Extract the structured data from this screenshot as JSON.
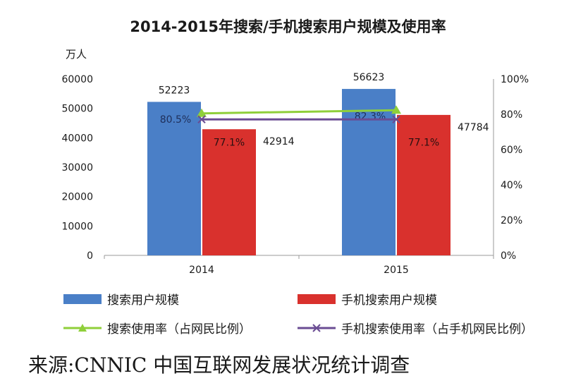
{
  "chart_data": {
    "type": "bar",
    "title": "2014-2015年搜索/手机搜索用户规模及使用率",
    "y_unit_label": "万人",
    "categories": [
      "2014",
      "2015"
    ],
    "ylim": [
      0,
      60000
    ],
    "yticks": [
      "0",
      "10000",
      "20000",
      "30000",
      "40000",
      "50000",
      "60000"
    ],
    "y2lim": [
      0,
      100
    ],
    "y2ticks": [
      "0%",
      "20%",
      "40%",
      "60%",
      "80%",
      "100%"
    ],
    "grid": false,
    "legend_position": "bottom",
    "series": [
      {
        "name": "搜索用户规模",
        "kind": "bar",
        "axis": "left",
        "color": "#4a7fc7",
        "values": [
          52223,
          56623
        ],
        "labels": [
          "52223",
          "56623"
        ]
      },
      {
        "name": "手机搜索用户规模",
        "kind": "bar",
        "axis": "left",
        "color": "#d9312d",
        "values": [
          42914,
          47784
        ],
        "labels": [
          "42914",
          "47784"
        ]
      },
      {
        "name": "搜索使用率（占网民比例）",
        "kind": "line",
        "axis": "right",
        "color": "#8fcf3a",
        "marker": "triangle",
        "values": [
          80.5,
          82.3
        ],
        "labels": [
          "80.5%",
          "82.3%"
        ]
      },
      {
        "name": "手机搜索使用率（占手机网民比例）",
        "kind": "line",
        "axis": "right",
        "color": "#6a4c93",
        "marker": "x",
        "values": [
          77.1,
          77.1
        ],
        "labels": [
          "77.1%",
          "77.1%"
        ]
      }
    ]
  },
  "source_note": "来源:CNNIC 中国互联网发展状况统计调查"
}
